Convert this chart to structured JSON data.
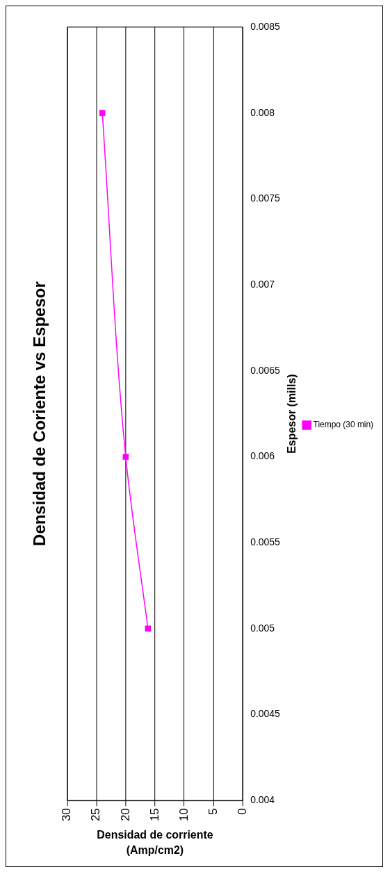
{
  "chart_data": {
    "type": "line",
    "title": "Densidad de Coriente vs Espesor",
    "xlabel": "Densidad de corriente (Amp/cm2)",
    "ylabel": "Espesor (mills)",
    "series": [
      {
        "name": "Tiempo (30 min)",
        "color": "#ff00ff",
        "x": [
          16.2,
          20,
          24
        ],
        "values": [
          0.005,
          0.006,
          0.008
        ]
      }
    ],
    "xlim": [
      30,
      0
    ],
    "xticks": [
      30,
      25,
      20,
      15,
      10,
      5,
      0
    ],
    "ylim": [
      0.004,
      0.0085
    ],
    "yticks": [
      0.004,
      0.0045,
      0.005,
      0.0055,
      0.006,
      0.0065,
      0.007,
      0.0075,
      0.008,
      0.0085
    ],
    "grid": "x",
    "legend": "right",
    "marker": "square",
    "line_style": "solid"
  }
}
